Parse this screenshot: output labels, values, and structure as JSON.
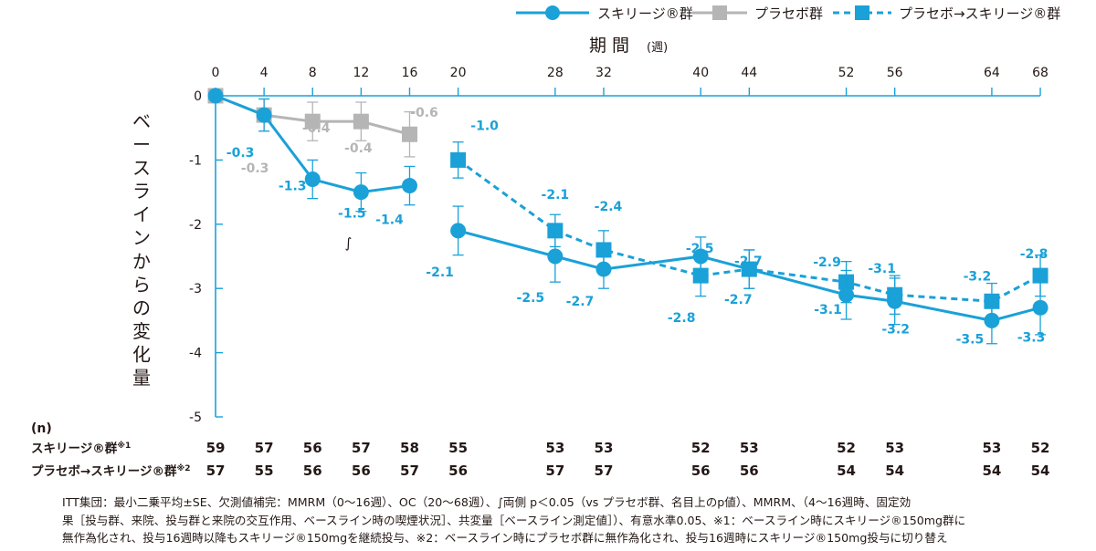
{
  "chart_data": {
    "type": "line",
    "xlabel_main": "期 間",
    "xlabel_unit": "(週)",
    "ylabel": "ベースラインからの変化量",
    "x_ticks": [
      0,
      4,
      8,
      12,
      16,
      20,
      28,
      32,
      40,
      44,
      52,
      56,
      64,
      68
    ],
    "y_ticks": [
      0,
      -1,
      -2,
      -3,
      -4,
      -5
    ],
    "ylim": [
      -5,
      0
    ],
    "legend_position": "top-right",
    "significance_marker": "∫",
    "significance_week": 12,
    "series": [
      {
        "name": "スキリージ®群",
        "color": "#1aa1d8",
        "line_style": "solid",
        "marker": "circle",
        "x": [
          0,
          4,
          8,
          12,
          16,
          20,
          28,
          32,
          40,
          44,
          52,
          56,
          64,
          68
        ],
        "values": [
          0,
          -0.3,
          -1.3,
          -1.5,
          -1.4,
          -2.1,
          -2.5,
          -2.7,
          -2.5,
          -2.7,
          -3.1,
          -3.2,
          -3.5,
          -3.3
        ],
        "labels": [
          "",
          "-0.3",
          "-1.3",
          "-1.5",
          "-1.4",
          "-2.1",
          "-2.5",
          "-2.7",
          "-2.5",
          "-2.7",
          "-3.1",
          "-3.2",
          "-3.5",
          "-3.3"
        ],
        "error": [
          0,
          0.25,
          0.3,
          0.3,
          0.3,
          0.38,
          0.4,
          0.3,
          0.3,
          0.3,
          0.38,
          0.36,
          0.36,
          0.42
        ]
      },
      {
        "name": "プラセボ群",
        "color": "#b5b5b6",
        "line_style": "solid",
        "marker": "square",
        "x": [
          0,
          4,
          8,
          12,
          16
        ],
        "values": [
          0,
          -0.3,
          -0.4,
          -0.4,
          -0.6
        ],
        "labels": [
          "",
          "-0.3",
          "-0.4",
          "-0.4",
          "-0.6"
        ],
        "error": [
          0,
          0.25,
          0.3,
          0.3,
          0.35
        ]
      },
      {
        "name": "プラセボ→スキリージ®群",
        "color": "#1aa1d8",
        "line_style": "dashed",
        "marker": "square",
        "x": [
          20,
          28,
          32,
          40,
          44,
          52,
          56,
          64,
          68
        ],
        "values": [
          -1.0,
          -2.1,
          -2.4,
          -2.8,
          -2.7,
          -2.9,
          -3.1,
          -3.2,
          -2.8
        ],
        "labels": [
          "-1.0",
          "-2.1",
          "-2.4",
          "-2.8",
          "-2.7",
          "-2.9",
          "-3.1",
          "-3.2",
          "-2.8"
        ],
        "error": [
          0.28,
          0.25,
          0.3,
          0.32,
          0.3,
          0.32,
          0.3,
          0.28,
          0.32
        ]
      }
    ],
    "n_table": {
      "header": "(n)",
      "rows": [
        {
          "label": "スキリージ®群",
          "note": "※1",
          "x": [
            0,
            4,
            8,
            12,
            16,
            20,
            28,
            32,
            40,
            44,
            52,
            56,
            64,
            68
          ],
          "values": [
            "59",
            "57",
            "56",
            "57",
            "58",
            "55",
            "53",
            "53",
            "52",
            "53",
            "52",
            "53",
            "53",
            "52"
          ]
        },
        {
          "label": "プラセボ→スキリージ®群",
          "note": "※2",
          "x": [
            0,
            4,
            8,
            12,
            16,
            20,
            28,
            32,
            40,
            44,
            52,
            56,
            64,
            68
          ],
          "values": [
            "57",
            "55",
            "56",
            "56",
            "57",
            "56",
            "57",
            "57",
            "56",
            "56",
            "54",
            "54",
            "54",
            "54"
          ]
        }
      ]
    }
  },
  "footnote": {
    "lines": [
      "ITT集団：最小二乗平均±SE、欠測値補完：MMRM（0〜16週）、OC（20〜68週）、∫両側 p＜0.05（vs プラセボ群、名目上のp値）、MMRM、（4〜16週時、固定効",
      "果［投与群、来院、投与群と来院の交互作用、ベースライン時の喫煙状況］、共変量［ベースライン測定値］）、有意水準0.05、※1：ベースライン時にスキリージ®150mg群に",
      "無作為化され、投与16週時以降もスキリージ®150mgを継続投与、※2：ベースライン時にプラセボ群に無作為化され、投与16週時にスキリージ®150mg投与に切り替え"
    ]
  }
}
